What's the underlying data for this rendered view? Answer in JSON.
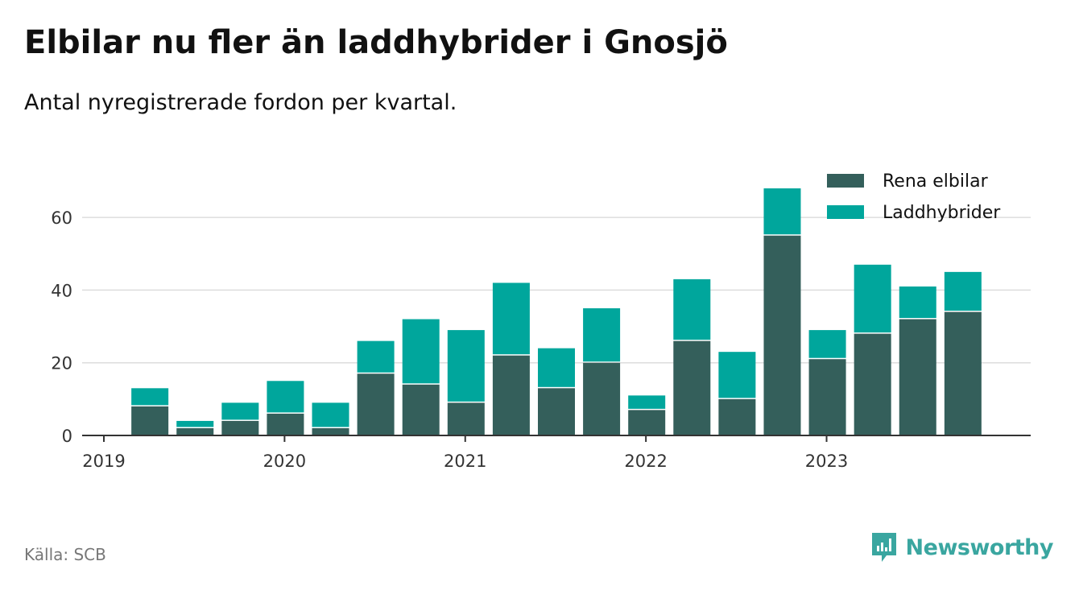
{
  "title": "Elbilar nu fler än laddhybrider i Gnosjö",
  "subtitle": "Antal nyregistrerade fordon per kvartal.",
  "source": "Källa: SCB",
  "brand": "Newsworthy",
  "colors": {
    "elbilar": "#345f5b",
    "laddhybrider": "#00a69c",
    "grid": "#dddddd",
    "axis": "#333333",
    "brand": "#3aa6a0"
  },
  "chart_data": {
    "type": "bar",
    "stacked": true,
    "title": "Elbilar nu fler än laddhybrider i Gnosjö",
    "subtitle": "Antal nyregistrerade fordon per kvartal.",
    "xlabel": "",
    "ylabel": "",
    "ylim": [
      0,
      70
    ],
    "yticks": [
      0,
      20,
      40,
      60
    ],
    "grid": true,
    "legend_position": "top-right",
    "categories": [
      "2019-Q1",
      "2019-Q2",
      "2019-Q3",
      "2019-Q4",
      "2020-Q1",
      "2020-Q2",
      "2020-Q3",
      "2020-Q4",
      "2021-Q1",
      "2021-Q2",
      "2021-Q3",
      "2021-Q4",
      "2022-Q1",
      "2022-Q2",
      "2022-Q3",
      "2022-Q4",
      "2023-Q1",
      "2023-Q2",
      "2023-Q3",
      "2023-Q4"
    ],
    "xtick_labels": [
      "2019",
      "2020",
      "2021",
      "2022",
      "2023"
    ],
    "series": [
      {
        "name": "Rena elbilar",
        "values": [
          0,
          8,
          2,
          4,
          6,
          2,
          17,
          14,
          9,
          22,
          13,
          20,
          7,
          26,
          10,
          55,
          21,
          28,
          32,
          34
        ]
      },
      {
        "name": "Laddhybrider",
        "values": [
          0,
          5,
          2,
          5,
          9,
          7,
          9,
          18,
          20,
          20,
          11,
          15,
          4,
          17,
          13,
          13,
          8,
          19,
          9,
          11
        ]
      }
    ]
  }
}
